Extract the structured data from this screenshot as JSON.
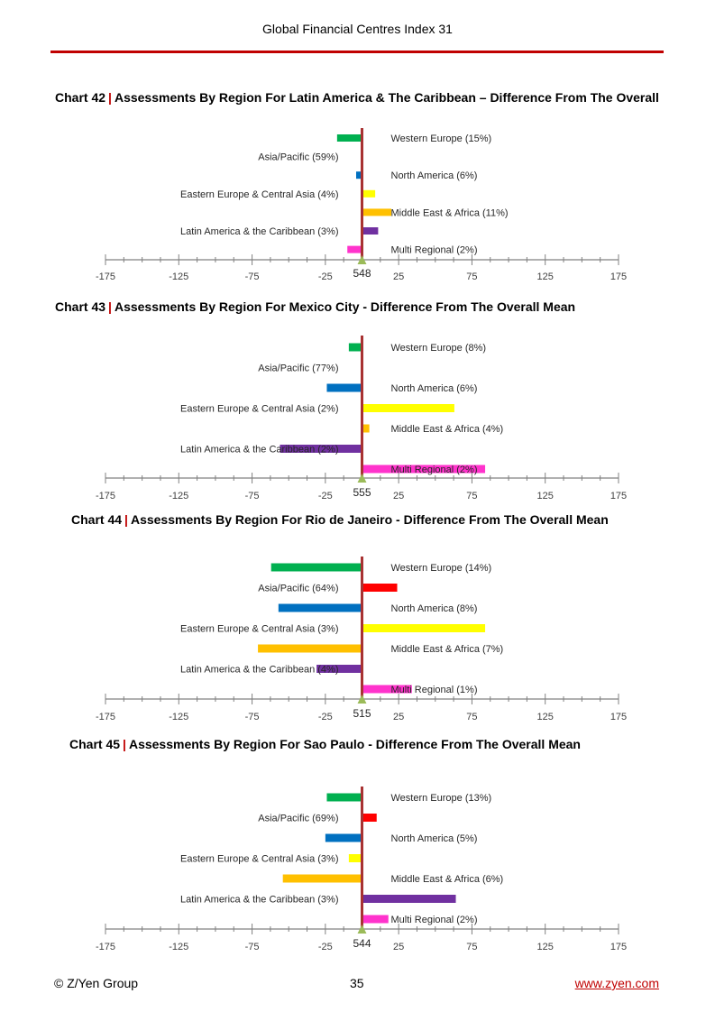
{
  "header": {
    "title": "Global Financial Centres Index 31"
  },
  "footer": {
    "copyright": "© Z/Yen Group",
    "page_number": "35",
    "link": "www.zyen.com"
  },
  "colors": {
    "accent": "#c00000",
    "mean_line": "#a83232",
    "axis": "#808080",
    "regions": {
      "Western Europe": "#00b050",
      "Asia/Pacific": "#ff0000",
      "North America": "#0070c0",
      "Eastern Europe & Central Asia": "#ffff00",
      "Middle East & Africa": "#ffc000",
      "Latin America & the Caribbean": "#7030a0",
      "Multi Regional": "#ff33cc"
    }
  },
  "chart_data": [
    {
      "type": "bar",
      "number": "Chart 42",
      "separator": "|",
      "title": "Assessments By Region For Latin America & The Caribbean – Difference From The Overall",
      "mean_label": "548",
      "xlim": [
        -175,
        175
      ],
      "tick_labels": [
        "-175",
        "-125",
        "-75",
        "-25",
        "25",
        "75",
        "125",
        "175"
      ],
      "categories": [
        "Western Europe (15%)",
        "Asia/Pacific (59%)",
        "North America (6%)",
        "Eastern Europe & Central Asia (4%)",
        "Middle East & Africa (11%)",
        "Latin America & the Caribbean (3%)",
        "Multi Regional (2%)"
      ],
      "regions": [
        "Western Europe",
        "Asia/Pacific",
        "North America",
        "Eastern Europe & Central Asia",
        "Middle East & Africa",
        "Latin America & the Caribbean",
        "Multi Regional"
      ],
      "values": [
        -17,
        0,
        -4,
        9,
        20,
        11,
        -10
      ]
    },
    {
      "type": "bar",
      "number": "Chart 43",
      "separator": "|",
      "title": "Assessments By Region For Mexico City - Difference From The Overall Mean",
      "mean_label": "555",
      "xlim": [
        -175,
        175
      ],
      "tick_labels": [
        "-175",
        "-125",
        "-75",
        "-25",
        "25",
        "75",
        "125",
        "175"
      ],
      "categories": [
        "Western Europe (8%)",
        "Asia/Pacific (77%)",
        "North America (6%)",
        "Eastern Europe & Central Asia (2%)",
        "Middle East & Africa (4%)",
        "Latin America & the Caribbean (2%)",
        "Multi Regional (2%)"
      ],
      "regions": [
        "Western Europe",
        "Asia/Pacific",
        "North America",
        "Eastern Europe & Central Asia",
        "Middle East & Africa",
        "Latin America & the Caribbean",
        "Multi Regional"
      ],
      "values": [
        -9,
        0,
        -24,
        63,
        5,
        -56,
        84
      ]
    },
    {
      "type": "bar",
      "number": "Chart 44",
      "separator": "|",
      "title": "Assessments By Region For Rio de Janeiro - Difference From The Overall Mean",
      "mean_label": "515",
      "xlim": [
        -175,
        175
      ],
      "tick_labels": [
        "-175",
        "-125",
        "-75",
        "-25",
        "25",
        "75",
        "125",
        "175"
      ],
      "categories": [
        "Western Europe (14%)",
        "Asia/Pacific (64%)",
        "North America (8%)",
        "Eastern Europe & Central Asia (3%)",
        "Middle East & Africa (7%)",
        "Latin America & the Caribbean (4%)",
        "Multi Regional (1%)"
      ],
      "regions": [
        "Western Europe",
        "Asia/Pacific",
        "North America",
        "Eastern Europe & Central Asia",
        "Middle East & Africa",
        "Latin America & the Caribbean",
        "Multi Regional"
      ],
      "values": [
        -62,
        24,
        -57,
        84,
        -71,
        -31,
        34
      ]
    },
    {
      "type": "bar",
      "number": "Chart 45",
      "separator": "|",
      "title": "Assessments By Region For Sao Paulo - Difference From The Overall Mean",
      "mean_label": "544",
      "xlim": [
        -175,
        175
      ],
      "tick_labels": [
        "-175",
        "-125",
        "-75",
        "-25",
        "25",
        "75",
        "125",
        "175"
      ],
      "categories": [
        "Western Europe (13%)",
        "Asia/Pacific (69%)",
        "North America (5%)",
        "Eastern Europe & Central Asia (3%)",
        "Middle East & Africa (6%)",
        "Latin America & the Caribbean (3%)",
        "Multi Regional (2%)"
      ],
      "regions": [
        "Western Europe",
        "Asia/Pacific",
        "North America",
        "Eastern Europe & Central Asia",
        "Middle East & Africa",
        "Latin America & the Caribbean",
        "Multi Regional"
      ],
      "values": [
        -24,
        10,
        -25,
        -9,
        -54,
        64,
        18
      ]
    }
  ]
}
